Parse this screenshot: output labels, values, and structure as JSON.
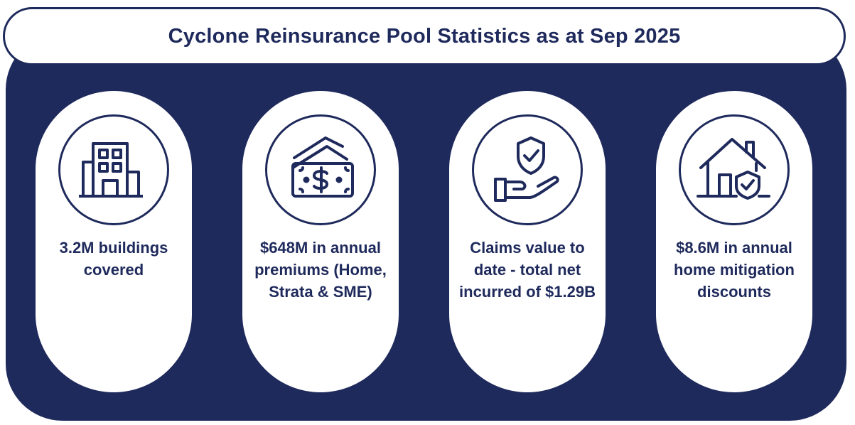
{
  "title": "Cyclone Reinsurance Pool Statistics as at Sep 2025",
  "colors": {
    "navy": "#1f2a5c",
    "white": "#ffffff"
  },
  "cards": [
    {
      "icon": "office-building-icon",
      "text": "3.2M buildings covered"
    },
    {
      "icon": "banknotes-dollar-icon",
      "text": "$648M in annual premiums (Home, Strata & SME)"
    },
    {
      "icon": "hand-shield-check-icon",
      "text": "Claims value to date - total net incurred of $1.29B"
    },
    {
      "icon": "house-shield-check-icon",
      "text": "$8.6M in annual home mitigation discounts"
    }
  ]
}
